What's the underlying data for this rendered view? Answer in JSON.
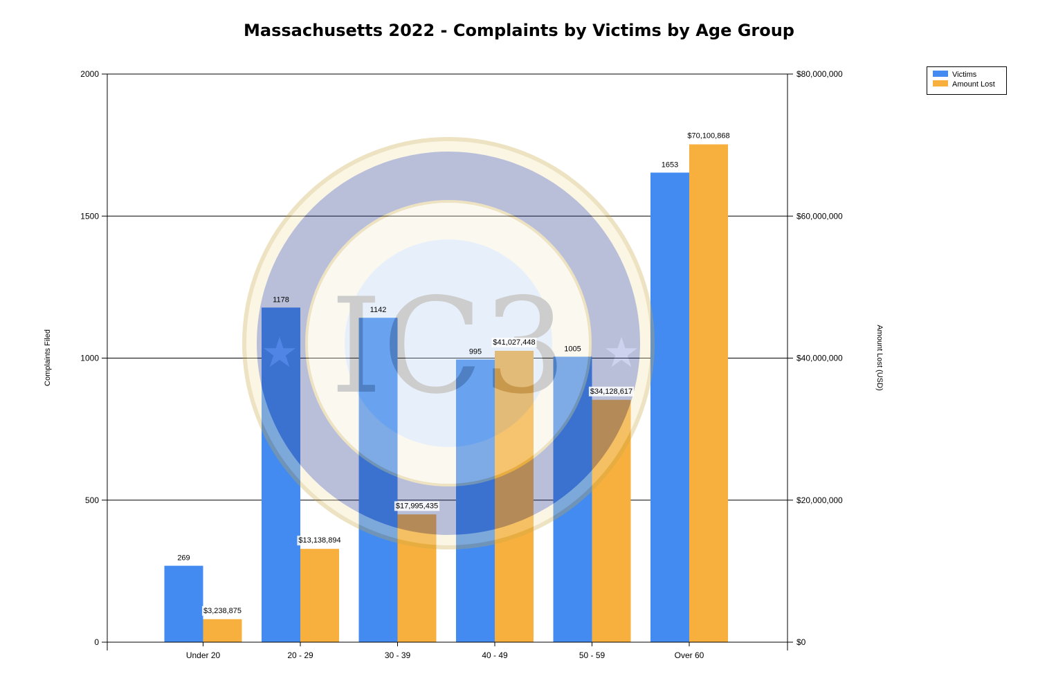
{
  "chart_data": {
    "type": "bar",
    "title": "Massachusetts 2022 - Complaints by Victims by Age Group",
    "categories": [
      "Under 20",
      "20 - 29",
      "30 - 39",
      "40 - 49",
      "50 - 59",
      "Over 60"
    ],
    "series": [
      {
        "name": "Victims",
        "axis": "left",
        "color": "#438BF0",
        "values": [
          269,
          1178,
          1142,
          995,
          1005,
          1653
        ],
        "labels": [
          "269",
          "1178",
          "1142",
          "995",
          "1005",
          "1653"
        ]
      },
      {
        "name": "Amount Lost",
        "axis": "right",
        "color": "#F7B03E",
        "values": [
          3238875,
          13138894,
          17995435,
          41027448,
          34128617,
          70100868
        ],
        "labels": [
          "$3,238,875",
          "$13,138,894",
          "$17,995,435",
          "$41,027,448",
          "$34,128,617",
          "$70,100,868"
        ]
      }
    ],
    "ylabel": "Complaints Filed",
    "ylim": [
      0,
      2000
    ],
    "yticks": [
      "0",
      "500",
      "1000",
      "1500",
      "2000"
    ],
    "y2label": "Amount Lost (USD)",
    "y2lim": [
      0,
      80000000
    ],
    "y2ticks": [
      "$0",
      "$20,000,000",
      "$40,000,000",
      "$60,000,000",
      "$80,000,000"
    ],
    "grid": true,
    "legend_position": "top-right",
    "watermark": "FEDERAL BUREAU OF INVESTIGATION INTERNET CRIME COMPLAINT CENTER IC3"
  }
}
